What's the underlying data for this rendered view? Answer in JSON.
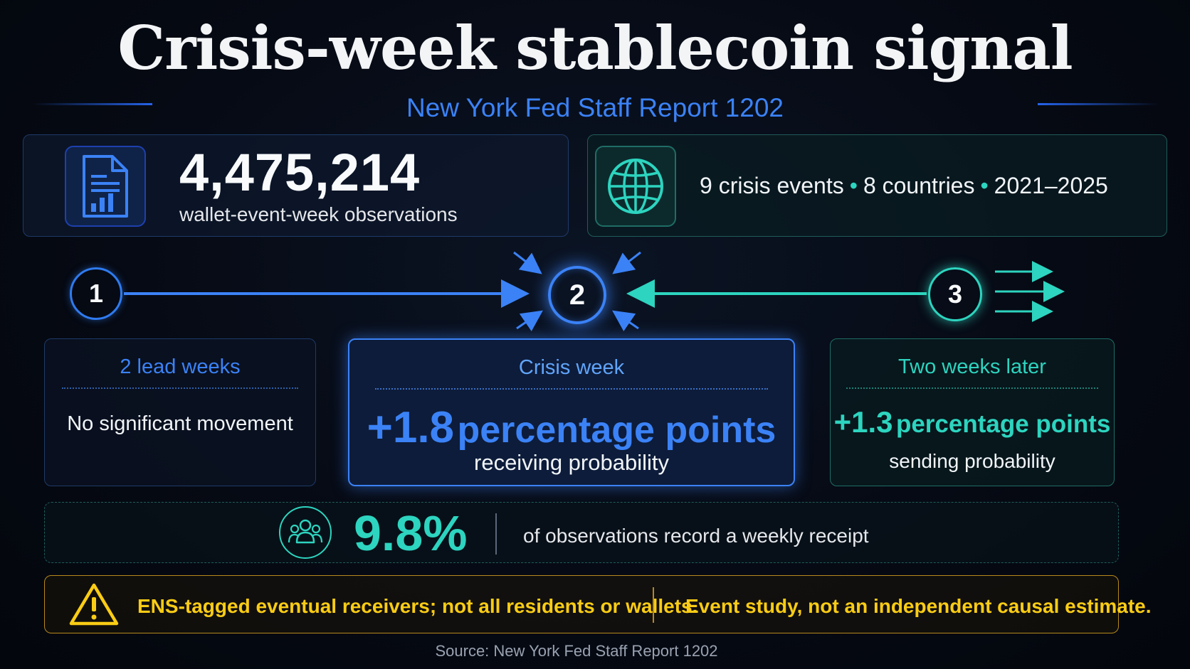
{
  "title": "Crisis-week stablecoin signal",
  "subtitle": "New York Fed Staff Report 1202",
  "observations": {
    "value": "4,475,214",
    "label": "wallet-event-week observations",
    "icon": "document-chart-icon"
  },
  "events": {
    "crisis_events": "9 crisis events",
    "countries": "8 countries",
    "years": "2021–2025",
    "separator": "•",
    "icon": "globe-icon"
  },
  "timeline": {
    "steps": [
      "1",
      "2",
      "3"
    ],
    "lead": {
      "heading": "2 lead weeks",
      "body": "No significant movement"
    },
    "crisis": {
      "heading": "Crisis week",
      "value": "+1.8",
      "unit": "percentage points",
      "sub": "receiving probability"
    },
    "later": {
      "heading": "Two weeks later",
      "value": "+1.3",
      "unit": "percentage points",
      "sub": "sending probability"
    }
  },
  "stat": {
    "value": "9.8%",
    "label": "of observations record a weekly receipt",
    "icon": "people-icon"
  },
  "caveats": {
    "left": "ENS-tagged eventual receivers; not all residents or wallets.",
    "right": "Event study, not an independent causal estimate.",
    "icon": "warning-icon"
  },
  "source": "Source: New York Fed Staff Report 1202",
  "colors": {
    "blue": "#3b82f6",
    "teal": "#2dd4bf",
    "amber": "#facc15"
  }
}
